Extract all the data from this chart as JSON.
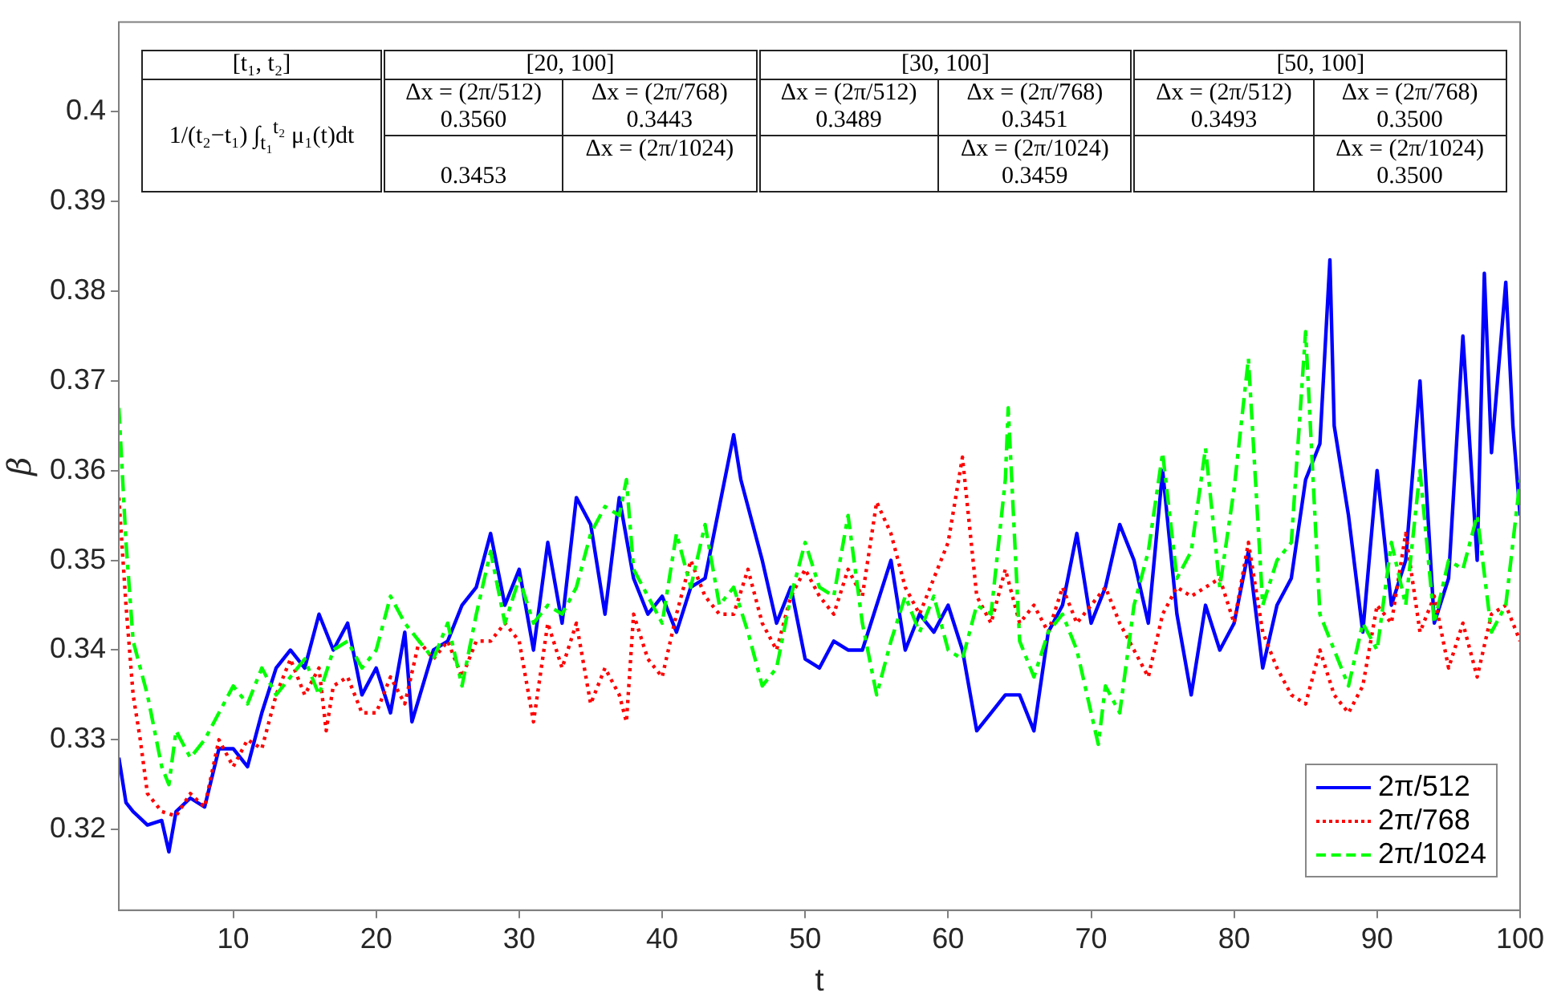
{
  "chart_data": {
    "type": "line",
    "xlabel": "t",
    "ylabel": "β",
    "xlim": [
      2,
      100
    ],
    "ylim": [
      0.311,
      0.41
    ],
    "xticks": [
      10,
      20,
      30,
      40,
      50,
      60,
      70,
      80,
      90,
      100
    ],
    "yticks": [
      0.32,
      0.33,
      0.34,
      0.35,
      0.36,
      0.37,
      0.38,
      0.39,
      0.4
    ],
    "grid": false,
    "legend": "bottom right",
    "marker": "none",
    "annotations": [
      "[t₁, t₂]",
      "[20, 100]",
      "[30, 100]",
      "[50, 100]",
      "1/(t₂−t₁) ∫$_{t₁}$$^{t₂}$ μ₁(t)dt",
      "Δx = (2π/512)",
      "0.3560",
      "Δx = (2π/768)",
      "0.3443",
      "Δx = (2π/1024)",
      "0.3453",
      "Δx = (2π/512)",
      "0.3489",
      "Δx = (2π/768)",
      "0.3451",
      "Δx = (2π/1024)",
      "0.3459",
      "Δx = (2π/512)",
      "0.3493",
      "Δx = (2π/768)",
      "0.3500",
      "Δx = (2π/1024)",
      "0.3500"
    ],
    "series": [
      {
        "name": "2π/512",
        "color": "#0000ff",
        "line_style": "solid",
        "x": [
          2,
          2.5,
          3,
          4,
          5,
          5.5,
          6,
          7,
          8,
          9,
          10,
          11,
          12,
          13,
          14,
          15,
          16,
          17,
          18,
          19,
          20,
          21,
          22,
          22.5,
          24,
          25,
          26,
          27,
          28,
          29,
          30,
          31,
          32,
          33,
          34,
          35,
          36,
          37,
          38,
          39,
          40,
          41,
          42,
          43,
          44,
          45,
          45.5,
          46,
          47,
          48,
          49,
          50,
          51,
          52,
          53,
          54,
          56,
          57,
          58,
          59,
          60,
          61,
          62,
          63,
          64,
          65,
          66,
          67,
          68,
          69,
          70,
          71,
          72,
          73,
          74,
          75,
          76,
          77,
          78,
          79,
          80,
          81,
          82,
          83,
          84,
          85,
          86,
          86.7,
          87,
          88,
          89,
          90,
          91,
          92,
          93,
          94,
          95,
          96,
          97,
          97.5,
          98,
          99,
          99.5,
          100
        ],
        "values": [
          0.328,
          0.323,
          0.322,
          0.3205,
          0.321,
          0.3175,
          0.322,
          0.3235,
          0.3225,
          0.329,
          0.329,
          0.327,
          0.333,
          0.338,
          0.34,
          0.338,
          0.344,
          0.34,
          0.343,
          0.335,
          0.338,
          0.333,
          0.342,
          0.332,
          0.34,
          0.341,
          0.345,
          0.347,
          0.353,
          0.345,
          0.349,
          0.34,
          0.352,
          0.343,
          0.357,
          0.354,
          0.344,
          0.357,
          0.348,
          0.344,
          0.346,
          0.342,
          0.347,
          0.348,
          0.356,
          0.364,
          0.359,
          0.356,
          0.35,
          0.343,
          0.347,
          0.339,
          0.338,
          0.341,
          0.34,
          0.34,
          0.35,
          0.34,
          0.344,
          0.342,
          0.345,
          0.34,
          0.331,
          0.333,
          0.335,
          0.335,
          0.331,
          0.342,
          0.345,
          0.353,
          0.343,
          0.347,
          0.354,
          0.35,
          0.343,
          0.36,
          0.344,
          0.335,
          0.345,
          0.34,
          0.343,
          0.351,
          0.338,
          0.345,
          0.348,
          0.359,
          0.363,
          0.3835,
          0.365,
          0.355,
          0.342,
          0.36,
          0.345,
          0.35,
          0.37,
          0.343,
          0.348,
          0.375,
          0.35,
          0.382,
          0.362,
          0.381,
          0.365,
          0.355
        ]
      },
      {
        "name": "2π/768",
        "color": "#ff0000",
        "line_style": "dotted",
        "x": [
          2,
          2.5,
          3,
          3.5,
          4,
          5,
          6,
          7,
          8,
          9,
          10,
          11,
          12,
          13,
          14,
          15,
          16,
          16.5,
          17,
          18,
          19,
          20,
          21,
          22,
          23,
          24,
          25,
          26,
          27,
          28,
          29,
          30,
          31,
          32,
          33,
          34,
          35,
          36,
          37,
          37.5,
          38,
          39,
          40,
          41,
          42,
          43,
          44,
          45,
          46,
          47,
          48,
          49,
          50,
          51,
          52,
          53,
          54,
          55,
          56,
          57,
          58,
          59,
          60,
          61,
          62,
          63,
          64,
          65,
          66,
          67,
          68,
          69,
          70,
          71,
          72,
          73,
          74,
          75,
          76,
          77,
          78,
          79,
          80,
          81,
          82,
          83,
          84,
          85,
          86,
          87,
          88,
          89,
          90,
          91,
          92,
          93,
          94,
          95,
          96,
          97,
          98,
          99,
          100
        ],
        "values": [
          0.357,
          0.345,
          0.335,
          0.33,
          0.324,
          0.322,
          0.3215,
          0.324,
          0.3225,
          0.33,
          0.327,
          0.33,
          0.329,
          0.335,
          0.339,
          0.335,
          0.338,
          0.331,
          0.336,
          0.337,
          0.333,
          0.333,
          0.337,
          0.334,
          0.341,
          0.339,
          0.341,
          0.337,
          0.341,
          0.341,
          0.343,
          0.341,
          0.332,
          0.343,
          0.338,
          0.343,
          0.334,
          0.338,
          0.335,
          0.332,
          0.344,
          0.339,
          0.337,
          0.344,
          0.35,
          0.346,
          0.344,
          0.344,
          0.349,
          0.343,
          0.34,
          0.346,
          0.349,
          0.346,
          0.344,
          0.349,
          0.346,
          0.3565,
          0.353,
          0.347,
          0.344,
          0.348,
          0.352,
          0.3615,
          0.346,
          0.343,
          0.349,
          0.343,
          0.345,
          0.342,
          0.347,
          0.343,
          0.345,
          0.347,
          0.343,
          0.34,
          0.337,
          0.344,
          0.347,
          0.346,
          0.347,
          0.348,
          0.343,
          0.352,
          0.342,
          0.338,
          0.335,
          0.334,
          0.34,
          0.335,
          0.333,
          0.336,
          0.345,
          0.343,
          0.353,
          0.342,
          0.346,
          0.338,
          0.343,
          0.337,
          0.344,
          0.345,
          0.341
        ]
      },
      {
        "name": "2π/1024",
        "color": "#00ff00",
        "line_style": "dashed",
        "x": [
          2,
          2.5,
          3,
          4,
          5,
          5.5,
          6,
          7,
          8,
          9,
          10,
          11,
          12,
          13,
          14,
          15,
          16,
          17,
          18,
          19,
          20,
          21,
          22,
          23,
          24,
          25,
          26,
          27,
          28,
          29,
          30,
          31,
          32,
          33,
          34,
          35,
          36,
          37,
          37.5,
          38,
          39,
          40,
          41,
          42,
          43,
          44,
          45,
          46,
          47,
          48,
          49,
          50,
          51,
          52,
          53,
          54,
          55,
          56,
          57,
          58,
          59,
          60,
          61,
          62,
          63,
          64,
          64.2,
          65,
          66,
          67,
          68,
          69,
          70,
          70.5,
          71,
          72,
          73,
          74,
          75,
          76,
          77,
          78,
          79,
          80,
          81,
          82,
          83,
          84,
          85,
          86,
          87,
          88,
          89,
          90,
          91,
          92,
          93,
          94,
          95,
          96,
          97,
          98,
          99,
          100
        ],
        "values": [
          0.367,
          0.352,
          0.341,
          0.335,
          0.327,
          0.325,
          0.331,
          0.328,
          0.33,
          0.333,
          0.336,
          0.334,
          0.338,
          0.335,
          0.337,
          0.339,
          0.335,
          0.34,
          0.341,
          0.338,
          0.34,
          0.346,
          0.343,
          0.341,
          0.339,
          0.343,
          0.336,
          0.344,
          0.351,
          0.343,
          0.348,
          0.343,
          0.345,
          0.344,
          0.347,
          0.353,
          0.356,
          0.355,
          0.359,
          0.349,
          0.346,
          0.343,
          0.353,
          0.347,
          0.354,
          0.345,
          0.347,
          0.342,
          0.336,
          0.338,
          0.346,
          0.352,
          0.347,
          0.346,
          0.355,
          0.343,
          0.335,
          0.341,
          0.346,
          0.342,
          0.346,
          0.34,
          0.339,
          0.345,
          0.344,
          0.359,
          0.367,
          0.341,
          0.337,
          0.342,
          0.344,
          0.34,
          0.333,
          0.3295,
          0.336,
          0.333,
          0.345,
          0.351,
          0.362,
          0.348,
          0.351,
          0.3625,
          0.347,
          0.358,
          0.3725,
          0.345,
          0.35,
          0.352,
          0.3755,
          0.344,
          0.34,
          0.336,
          0.343,
          0.34,
          0.352,
          0.345,
          0.36,
          0.343,
          0.35,
          0.349,
          0.355,
          0.342,
          0.345,
          0.359
        ]
      }
    ]
  }
}
